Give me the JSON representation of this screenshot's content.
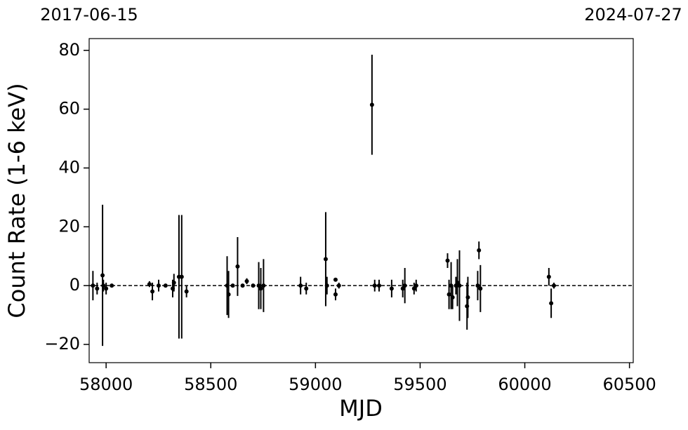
{
  "chart_data": {
    "type": "errorbar",
    "xlabel": "MJD",
    "ylabel": "Count Rate (1-6 keV)",
    "xlim": [
      57919,
      60518
    ],
    "ylim": [
      -26.2,
      84
    ],
    "xticks": [
      58000,
      58500,
      59000,
      59500,
      60000,
      60500
    ],
    "x2ticks": [
      {
        "value": 57919,
        "label": "2017-06-15"
      },
      {
        "value": 60518,
        "label": "2024-07-27"
      }
    ],
    "yticks": [
      {
        "value": -20,
        "label": "−20"
      },
      0,
      20,
      40,
      60,
      80
    ],
    "hline": 0,
    "color": "#000000",
    "x": [
      57937,
      57957,
      57983,
      57987,
      58000,
      58027,
      58207,
      58221,
      58251,
      58284,
      58318,
      58324,
      58348,
      58361,
      58384,
      58578,
      58585,
      58605,
      58628,
      58652,
      58672,
      58702,
      58729,
      58739,
      58752,
      58929,
      58956,
      59049,
      59055,
      59096,
      59096,
      59112,
      59270,
      59283,
      59304,
      59364,
      59417,
      59427,
      59471,
      59481,
      59631,
      59638,
      59648,
      59655,
      59671,
      59678,
      59688,
      59724,
      59728,
      59775,
      59781,
      59788,
      60115,
      60126,
      60139
    ],
    "y": [
      0,
      -1,
      3.5,
      0,
      -1,
      0,
      0.5,
      -2,
      0,
      0,
      -1,
      1,
      3,
      3,
      -2,
      0,
      -3,
      0,
      6.5,
      0,
      1.5,
      0,
      0,
      -1,
      0,
      0,
      -1,
      9,
      0,
      2,
      -3,
      0,
      61.5,
      0,
      0,
      -1,
      -1,
      0,
      -1,
      0,
      8.5,
      -3,
      0,
      -4,
      0,
      1,
      0,
      -7,
      -4,
      0,
      12,
      -1,
      3,
      -6,
      0
    ],
    "yerr": [
      5,
      2,
      24,
      2,
      2,
      0.5,
      1,
      3,
      2,
      0.5,
      3,
      3,
      21,
      21,
      2,
      10,
      8,
      0.5,
      10,
      0.5,
      1,
      0.5,
      8,
      7,
      9,
      3,
      2,
      16,
      3,
      0.5,
      2,
      1,
      17,
      2,
      2,
      3,
      3,
      6,
      2,
      2,
      2.5,
      5,
      8,
      4,
      3,
      8,
      12,
      8,
      7,
      5,
      3,
      8,
      3,
      5,
      1
    ]
  }
}
